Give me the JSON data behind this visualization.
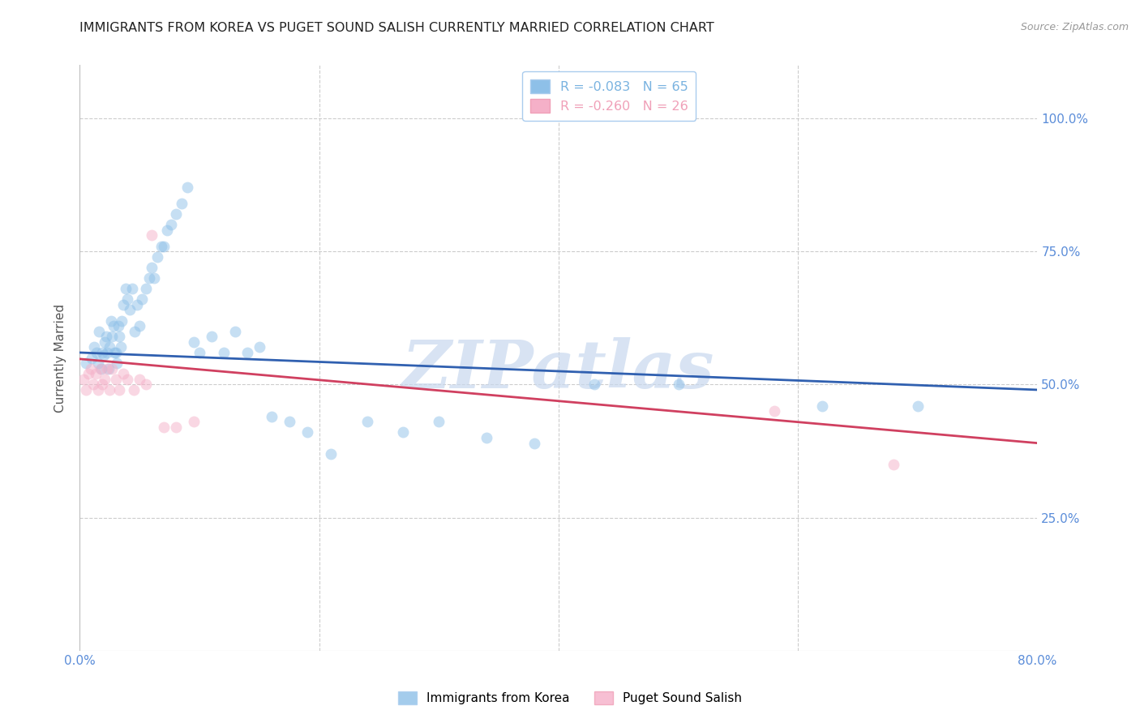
{
  "title": "IMMIGRANTS FROM KOREA VS PUGET SOUND SALISH CURRENTLY MARRIED CORRELATION CHART",
  "source": "Source: ZipAtlas.com",
  "ylabel": "Currently Married",
  "xlim": [
    0.0,
    0.8
  ],
  "ylim": [
    0.0,
    1.1
  ],
  "yticks": [
    0.25,
    0.5,
    0.75,
    1.0
  ],
  "ytick_labels": [
    "25.0%",
    "50.0%",
    "75.0%",
    "100.0%"
  ],
  "xticks": [
    0.0,
    0.2,
    0.4,
    0.6,
    0.8
  ],
  "xtick_labels": [
    "0.0%",
    "",
    "",
    "",
    "80.0%"
  ],
  "legend_line1": "R = -0.083   N = 65",
  "legend_line2": "R = -0.260   N = 26",
  "legend_color1": "#7ab3e0",
  "legend_color2": "#f0a0b8",
  "blue_scatter_x": [
    0.005,
    0.01,
    0.012,
    0.014,
    0.015,
    0.016,
    0.018,
    0.019,
    0.02,
    0.021,
    0.022,
    0.023,
    0.024,
    0.025,
    0.026,
    0.027,
    0.028,
    0.029,
    0.03,
    0.031,
    0.032,
    0.033,
    0.034,
    0.035,
    0.036,
    0.038,
    0.04,
    0.042,
    0.044,
    0.046,
    0.048,
    0.05,
    0.052,
    0.055,
    0.058,
    0.06,
    0.062,
    0.065,
    0.068,
    0.07,
    0.073,
    0.076,
    0.08,
    0.085,
    0.09,
    0.095,
    0.1,
    0.11,
    0.12,
    0.13,
    0.14,
    0.15,
    0.16,
    0.175,
    0.19,
    0.21,
    0.24,
    0.27,
    0.3,
    0.34,
    0.38,
    0.43,
    0.5,
    0.62,
    0.7
  ],
  "blue_scatter_y": [
    0.54,
    0.55,
    0.57,
    0.56,
    0.54,
    0.6,
    0.53,
    0.56,
    0.555,
    0.58,
    0.59,
    0.56,
    0.53,
    0.57,
    0.62,
    0.59,
    0.61,
    0.56,
    0.56,
    0.54,
    0.61,
    0.59,
    0.57,
    0.62,
    0.65,
    0.68,
    0.66,
    0.64,
    0.68,
    0.6,
    0.65,
    0.61,
    0.66,
    0.68,
    0.7,
    0.72,
    0.7,
    0.74,
    0.76,
    0.76,
    0.79,
    0.8,
    0.82,
    0.84,
    0.87,
    0.58,
    0.56,
    0.59,
    0.56,
    0.6,
    0.56,
    0.57,
    0.44,
    0.43,
    0.41,
    0.37,
    0.43,
    0.41,
    0.43,
    0.4,
    0.39,
    0.5,
    0.5,
    0.46,
    0.46
  ],
  "pink_scatter_x": [
    0.003,
    0.005,
    0.007,
    0.009,
    0.011,
    0.013,
    0.015,
    0.017,
    0.019,
    0.021,
    0.023,
    0.025,
    0.027,
    0.03,
    0.033,
    0.036,
    0.04,
    0.045,
    0.05,
    0.055,
    0.06,
    0.07,
    0.08,
    0.095,
    0.58,
    0.68
  ],
  "pink_scatter_y": [
    0.51,
    0.49,
    0.52,
    0.53,
    0.5,
    0.52,
    0.49,
    0.53,
    0.5,
    0.51,
    0.53,
    0.49,
    0.53,
    0.51,
    0.49,
    0.52,
    0.51,
    0.49,
    0.51,
    0.5,
    0.78,
    0.42,
    0.42,
    0.43,
    0.45,
    0.35
  ],
  "blue_line_x": [
    0.0,
    0.8
  ],
  "blue_line_y": [
    0.56,
    0.49
  ],
  "pink_line_x": [
    0.0,
    0.8
  ],
  "pink_line_y": [
    0.548,
    0.39
  ],
  "scatter_color_blue": "#8ec0e8",
  "scatter_color_pink": "#f5b0c8",
  "line_color_blue": "#3060b0",
  "line_color_pink": "#d04060",
  "marker_size": 100,
  "alpha_scatter": 0.5,
  "watermark": "ZIPatlas",
  "wm_color": "#c8d8ee",
  "background_color": "#ffffff",
  "grid_color": "#cccccc",
  "title_color": "#222222",
  "axis_label_color": "#555555",
  "tick_label_color": "#5b8dd9",
  "right_tick_color": "#5b8dd9",
  "title_fontsize": 11.5,
  "ylabel_fontsize": 11,
  "tick_fontsize": 11,
  "source_text": "Source: ZipAtlas.com",
  "bottom_legend_1": "Immigrants from Korea",
  "bottom_legend_2": "Puget Sound Salish"
}
